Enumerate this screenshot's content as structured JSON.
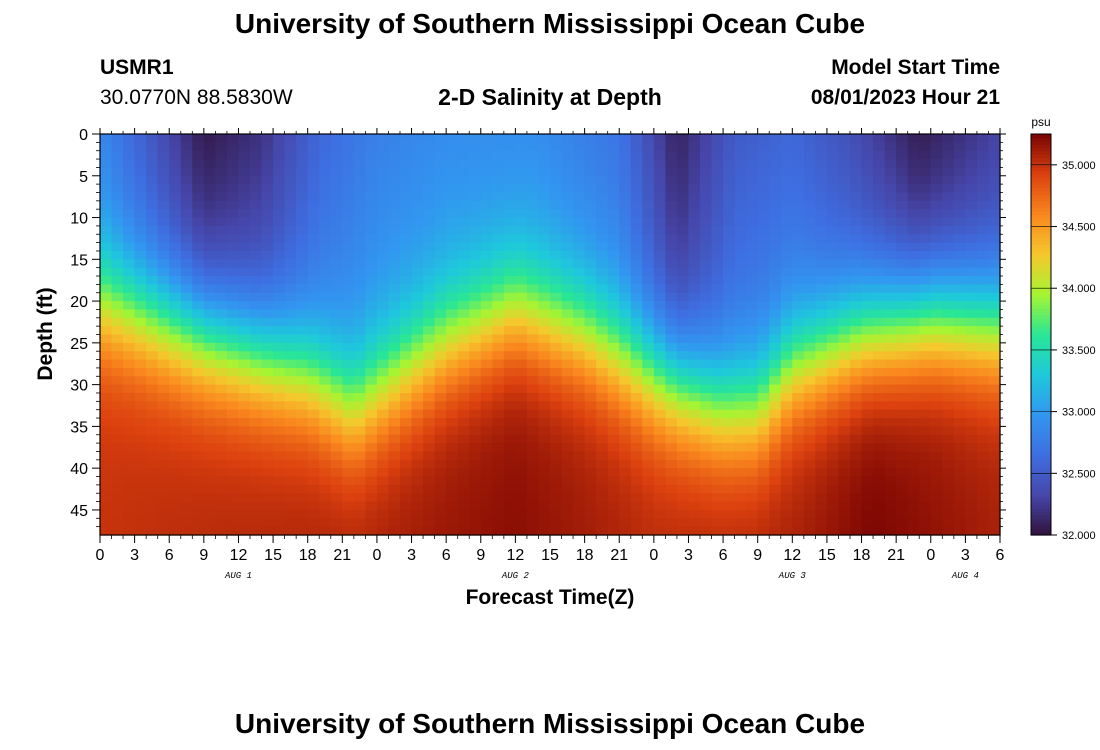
{
  "header": {
    "title": "University of Southern Mississippi Ocean Cube",
    "station_id": "USMR1",
    "station_coords": "30.0770N  88.5830W",
    "plot_title": "2-D Salinity at Depth",
    "model_start_label": "Model Start Time",
    "model_start_value": "08/01/2023 Hour 21"
  },
  "footer": {
    "title": "University of Southern Mississippi Ocean Cube"
  },
  "chart_data": {
    "type": "heatmap",
    "title": "2-D Salinity at Depth",
    "xlabel": "Forecast Time(Z)",
    "ylabel": "Depth (ft)",
    "x_range_hours": [
      0,
      78
    ],
    "y_range_ft": [
      0,
      48
    ],
    "x_tick_labels": [
      "0",
      "3",
      "6",
      "9",
      "12",
      "15",
      "18",
      "21",
      "0",
      "3",
      "6",
      "9",
      "12",
      "15",
      "18",
      "21",
      "0",
      "3",
      "6",
      "9",
      "12",
      "15",
      "18",
      "21",
      "0",
      "3",
      "6"
    ],
    "y_tick_labels": [
      "0",
      "5",
      "10",
      "15",
      "20",
      "25",
      "30",
      "35",
      "40",
      "45"
    ],
    "y_tick_values": [
      0,
      5,
      10,
      15,
      20,
      25,
      30,
      35,
      40,
      45
    ],
    "date_labels": [
      {
        "label": "AUG 1",
        "hour": 12
      },
      {
        "label": "AUG 2",
        "hour": 36
      },
      {
        "label": "AUG 3",
        "hour": 60
      },
      {
        "label": "AUG 4",
        "hour": 75
      }
    ],
    "colorbar": {
      "unit": "psu",
      "min": 32.0,
      "max": 35.25,
      "tick_values": [
        32.0,
        32.5,
        33.0,
        33.5,
        34.0,
        34.5,
        35.0
      ],
      "tick_labels": [
        "32.000",
        "32.500",
        "33.000",
        "33.500",
        "34.000",
        "34.500",
        "35.000"
      ]
    },
    "halocline_depth_ft": [
      {
        "hour": 0,
        "depth": 20
      },
      {
        "hour": 6,
        "depth": 23
      },
      {
        "hour": 12,
        "depth": 26
      },
      {
        "hour": 18,
        "depth": 29
      },
      {
        "hour": 22,
        "depth": 33
      },
      {
        "hour": 25,
        "depth": 30
      },
      {
        "hour": 30,
        "depth": 25
      },
      {
        "hour": 36,
        "depth": 21
      },
      {
        "hour": 42,
        "depth": 24
      },
      {
        "hour": 48,
        "depth": 29
      },
      {
        "hour": 54,
        "depth": 33
      },
      {
        "hour": 57,
        "depth": 33
      },
      {
        "hour": 60,
        "depth": 28
      },
      {
        "hour": 66,
        "depth": 24
      },
      {
        "hour": 72,
        "depth": 22
      },
      {
        "hour": 78,
        "depth": 23
      }
    ],
    "surface_salinity_psu": [
      {
        "hour": 0,
        "value": 32.85
      },
      {
        "hour": 4,
        "value": 32.5
      },
      {
        "hour": 9,
        "value": 32.05
      },
      {
        "hour": 14,
        "value": 32.2
      },
      {
        "hour": 19,
        "value": 32.6
      },
      {
        "hour": 24,
        "value": 32.8
      },
      {
        "hour": 30,
        "value": 32.9
      },
      {
        "hour": 38,
        "value": 32.9
      },
      {
        "hour": 45,
        "value": 32.7
      },
      {
        "hour": 50,
        "value": 32.1
      },
      {
        "hour": 55,
        "value": 32.5
      },
      {
        "hour": 60,
        "value": 32.6
      },
      {
        "hour": 65,
        "value": 32.4
      },
      {
        "hour": 71,
        "value": 32.05
      },
      {
        "hour": 78,
        "value": 32.3
      }
    ],
    "bottom_salinity_psu": [
      {
        "hour": 0,
        "value": 35.0
      },
      {
        "hour": 10,
        "value": 35.05
      },
      {
        "hour": 24,
        "value": 35.1
      },
      {
        "hour": 36,
        "value": 35.2
      },
      {
        "hour": 48,
        "value": 35.05
      },
      {
        "hour": 60,
        "value": 35.1
      },
      {
        "hour": 67,
        "value": 35.25
      },
      {
        "hour": 78,
        "value": 35.1
      }
    ]
  }
}
